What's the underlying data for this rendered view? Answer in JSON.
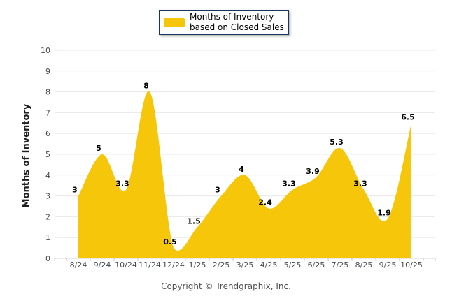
{
  "legend": {
    "label": "Months of Inventory based on Closed Sales",
    "swatch_color": "#F6C60A"
  },
  "chart_data": {
    "type": "area",
    "title": "",
    "categories": [
      "8/24",
      "9/24",
      "10/24",
      "11/24",
      "12/24",
      "1/25",
      "2/25",
      "3/25",
      "4/25",
      "5/25",
      "6/25",
      "7/25",
      "8/25",
      "9/25",
      "10/25"
    ],
    "series": [
      {
        "name": "Months of Inventory based on Closed Sales",
        "values": [
          3,
          5,
          3.3,
          8,
          0.5,
          1.5,
          3,
          4,
          2.4,
          3.3,
          3.9,
          5.3,
          3.3,
          1.9,
          6.5
        ]
      }
    ],
    "xlabel": "",
    "ylabel": "Months of Inventory",
    "ylim": [
      0,
      10
    ],
    "yticks": [
      0,
      1,
      2,
      3,
      4,
      5,
      6,
      7,
      8,
      9,
      10
    ],
    "grid": "horizontal",
    "legend_position": "top-center",
    "smooth": true,
    "data_labels_shown": true,
    "fill_color": "#F6C60A"
  },
  "footer": {
    "copyright": "Copyright © Trendgraphix, Inc."
  },
  "colors": {
    "area_fill": "#F6C60A",
    "legend_border": "#17365D",
    "gridline": "#E8E8E8",
    "axis_line": "#D6D6D6",
    "tick": "#C8C8C8",
    "tick_label": "#444A54",
    "data_label": "#000000",
    "y_title": "#1F1F1F",
    "copyright_text": "#4F4F4F"
  }
}
